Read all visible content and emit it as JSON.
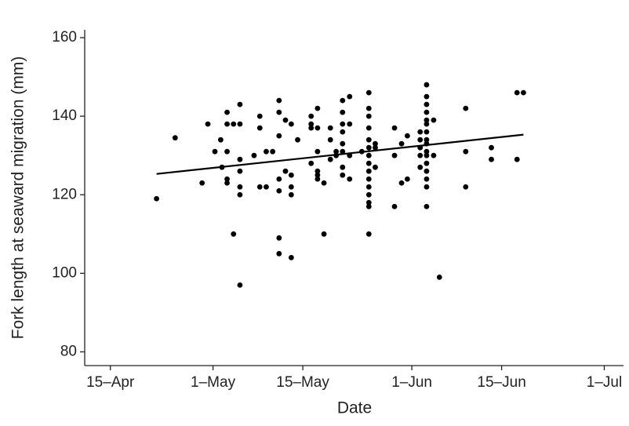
{
  "chart_data": {
    "type": "scatter",
    "x_label": "Date",
    "y_label": "Fork length at seaward migration (mm)",
    "xlim": [
      101,
      185
    ],
    "ylim": [
      76.5,
      162
    ],
    "xticks": [
      {
        "value": 105,
        "label": "15–Apr"
      },
      {
        "value": 121,
        "label": "1–May"
      },
      {
        "value": 135,
        "label": "15–May"
      },
      {
        "value": 152,
        "label": "1–Jun"
      },
      {
        "value": 166,
        "label": "15–Jun"
      },
      {
        "value": 182,
        "label": "1–Jul"
      }
    ],
    "yticks": [
      80,
      100,
      120,
      140,
      160
    ],
    "grid": false,
    "series": [
      {
        "type": "scatter",
        "color": "#000000",
        "x": [
          112.2,
          115.1,
          119.3,
          120.2,
          121.3,
          122.2,
          122.4,
          123.2,
          123.2,
          123.2,
          123.2,
          123.2,
          124.2,
          124.2,
          125.2,
          125.2,
          125.2,
          125.2,
          125.2,
          125.2,
          125.2,
          127.4,
          128.3,
          128.3,
          128.3,
          129.3,
          129.3,
          130.3,
          131.3,
          131.3,
          131.3,
          131.3,
          131.3,
          131.3,
          131.3,
          132.3,
          132.3,
          133.2,
          133.2,
          133.2,
          133.2,
          133.2,
          134.2,
          136.3,
          136.3,
          136.3,
          136.3,
          137.3,
          137.3,
          137.3,
          137.3,
          137.3,
          137.3,
          138.3,
          138.3,
          139.3,
          139.3,
          139.3,
          140.2,
          140.2,
          141.2,
          141.2,
          141.2,
          141.2,
          141.2,
          141.2,
          141.2,
          141.2,
          142.3,
          142.3,
          142.3,
          142.3,
          144.2,
          145.3,
          145.3,
          145.3,
          145.3,
          145.3,
          145.3,
          145.3,
          145.3,
          145.3,
          145.3,
          145.3,
          145.3,
          145.3,
          145.3,
          145.3,
          146.3,
          146.3,
          146.3,
          149.3,
          149.3,
          149.3,
          150.4,
          150.4,
          151.3,
          151.3,
          153.3,
          153.3,
          153.3,
          153.3,
          153.3,
          154.3,
          154.3,
          154.3,
          154.3,
          154.3,
          154.3,
          154.3,
          154.3,
          154.3,
          154.3,
          154.3,
          154.3,
          154.3,
          154.3,
          154.3,
          154.3,
          155.4,
          155.4,
          156.3,
          160.4,
          160.4,
          160.4,
          164.4,
          164.4,
          168.4,
          168.4,
          169.4
        ],
        "values": [
          119,
          134.5,
          123,
          138,
          131,
          134,
          127,
          141,
          138,
          131,
          124,
          123,
          138,
          110,
          138,
          143,
          129,
          126,
          122,
          120,
          97,
          130,
          140,
          137,
          122,
          122,
          131,
          131,
          144,
          141,
          135,
          124,
          121,
          109,
          105,
          139,
          126,
          138,
          125,
          122,
          120,
          104,
          134,
          140,
          138,
          137,
          128,
          142,
          137,
          131,
          126,
          125,
          124,
          123,
          110,
          137,
          134,
          129,
          131,
          130,
          144,
          141,
          138,
          136,
          133,
          131,
          127,
          125,
          145,
          138,
          130,
          124,
          131,
          146,
          142,
          140,
          137,
          134,
          132,
          130,
          128,
          126,
          124,
          122,
          120,
          118,
          117,
          110,
          133,
          132,
          127,
          137,
          130,
          117,
          133,
          123,
          135,
          124,
          136,
          134,
          132,
          130,
          127,
          148,
          145,
          143,
          141,
          139,
          138,
          136,
          134,
          133,
          131,
          130,
          128,
          126,
          124,
          122,
          117,
          139,
          130,
          99,
          142,
          131,
          122,
          132,
          129,
          146,
          129,
          146
        ]
      },
      {
        "type": "line",
        "color": "#000000",
        "x": [
          112.2,
          169.4
        ],
        "values": [
          125.3,
          135.3
        ]
      }
    ]
  }
}
